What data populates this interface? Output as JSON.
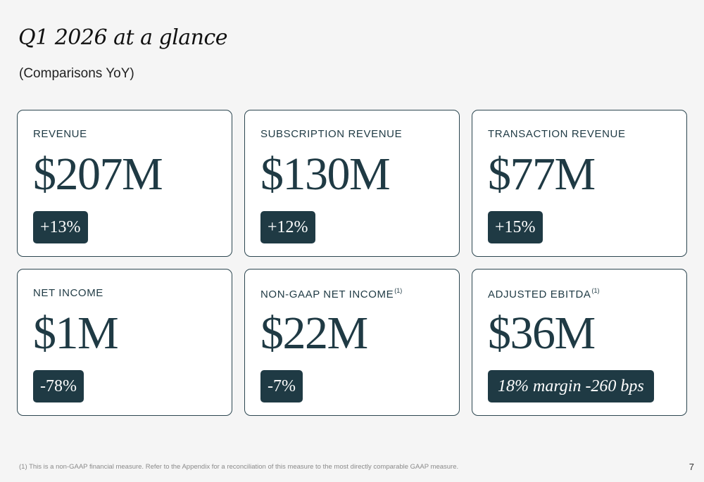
{
  "header": {
    "title": "Q1 2026 at a glance",
    "subtitle": "(Comparisons YoY)"
  },
  "cards": [
    {
      "label": "REVENUE",
      "footnote_ref": "",
      "value": "$207M",
      "change": "+13%"
    },
    {
      "label": "SUBSCRIPTION REVENUE",
      "footnote_ref": "",
      "value": "$130M",
      "change": "+12%"
    },
    {
      "label": "TRANSACTION REVENUE",
      "footnote_ref": "",
      "value": "$77M",
      "change": "+15%"
    },
    {
      "label": "NET INCOME",
      "footnote_ref": "",
      "value": "$1M",
      "change": "-78%"
    },
    {
      "label": "NON-GAAP NET INCOME",
      "footnote_ref": "(1)",
      "value": "$22M",
      "change": "-7%"
    },
    {
      "label": "ADJUSTED EBITDA",
      "footnote_ref": "(1)",
      "value": "$36M",
      "change": "18% margin -260 bps"
    }
  ],
  "footer": {
    "footnote": "(1) This is a non-GAAP financial measure. Refer to the Appendix for a reconciliation of this measure to the most directly comparable GAAP measure.",
    "page_number": "7"
  },
  "colors": {
    "background": "#f5f5f5",
    "card_border": "#2c4650",
    "accent_dark_teal": "#1f3a44",
    "badge_text": "#ffffff"
  }
}
